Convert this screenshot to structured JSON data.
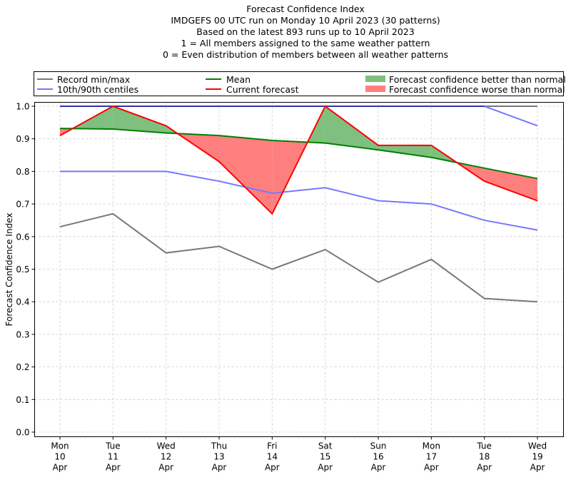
{
  "chart_data": {
    "type": "line",
    "title_lines": [
      "Forecast Confidence Index",
      "IMDGEFS 00 UTC run on Monday 10 April 2023 (30 patterns)",
      "Based on the latest 893 runs up to 10 April 2023",
      "1 = All members assigned to the same weather pattern",
      "0 = Even distribution of members between all weather patterns"
    ],
    "xlabel": "",
    "ylabel": "Forecast Confidence Index",
    "ylim": [
      0,
      1.0
    ],
    "yticks": [
      "0.0",
      "0.1",
      "0.2",
      "0.3",
      "0.4",
      "0.5",
      "0.6",
      "0.7",
      "0.8",
      "0.9",
      "1.0"
    ],
    "grid": true,
    "legend_position": "top",
    "categories": [
      [
        "Mon",
        "10",
        "Apr"
      ],
      [
        "Tue",
        "11",
        "Apr"
      ],
      [
        "Wed",
        "12",
        "Apr"
      ],
      [
        "Thu",
        "13",
        "Apr"
      ],
      [
        "Fri",
        "14",
        "Apr"
      ],
      [
        "Sat",
        "15",
        "Apr"
      ],
      [
        "Sun",
        "16",
        "Apr"
      ],
      [
        "Mon",
        "17",
        "Apr"
      ],
      [
        "Tue",
        "18",
        "Apr"
      ],
      [
        "Wed",
        "19",
        "Apr"
      ]
    ],
    "series": [
      {
        "name": "Record max",
        "key": "record_max",
        "color": "#777777",
        "values": [
          1.0,
          1.0,
          1.0,
          1.0,
          1.0,
          1.0,
          1.0,
          1.0,
          1.0,
          1.0
        ]
      },
      {
        "name": "Record min",
        "key": "record_min",
        "color": "#777777",
        "values": [
          0.63,
          0.67,
          0.55,
          0.57,
          0.5,
          0.56,
          0.46,
          0.53,
          0.41,
          0.4
        ]
      },
      {
        "name": "90th centile",
        "key": "p90",
        "color": "#7777ff",
        "values": [
          1.0,
          1.0,
          1.0,
          1.0,
          1.0,
          1.0,
          1.0,
          1.0,
          1.0,
          0.94
        ]
      },
      {
        "name": "10th centile",
        "key": "p10",
        "color": "#7777ff",
        "values": [
          0.8,
          0.8,
          0.8,
          0.77,
          0.733,
          0.75,
          0.71,
          0.7,
          0.65,
          0.62
        ]
      },
      {
        "name": "Mean",
        "key": "mean",
        "color": "#008000",
        "values": [
          0.932,
          0.93,
          0.918,
          0.91,
          0.895,
          0.887,
          0.866,
          0.843,
          0.81,
          0.778
        ]
      },
      {
        "name": "Current forecast",
        "key": "current",
        "color": "#ff0000",
        "values": [
          0.91,
          1.0,
          0.94,
          0.83,
          0.67,
          1.0,
          0.88,
          0.88,
          0.77,
          0.71
        ]
      }
    ],
    "fill_colors": {
      "better": "#7fbf7f",
      "worse": "#ff7f7f",
      "max_overlap": "#3333aa"
    },
    "legend": [
      {
        "label": "Record min/max",
        "kind": "line",
        "color": "#777777"
      },
      {
        "label": "10th/90th centiles",
        "kind": "line",
        "color": "#7777ff"
      },
      {
        "label": "Mean",
        "kind": "line",
        "color": "#008000"
      },
      {
        "label": "Current forecast",
        "kind": "line",
        "color": "#ff0000"
      },
      {
        "label": "Forecast confidence better than normal",
        "kind": "patch",
        "color": "#7fbf7f"
      },
      {
        "label": "Forecast confidence worse than normal",
        "kind": "patch",
        "color": "#ff7f7f"
      }
    ]
  }
}
